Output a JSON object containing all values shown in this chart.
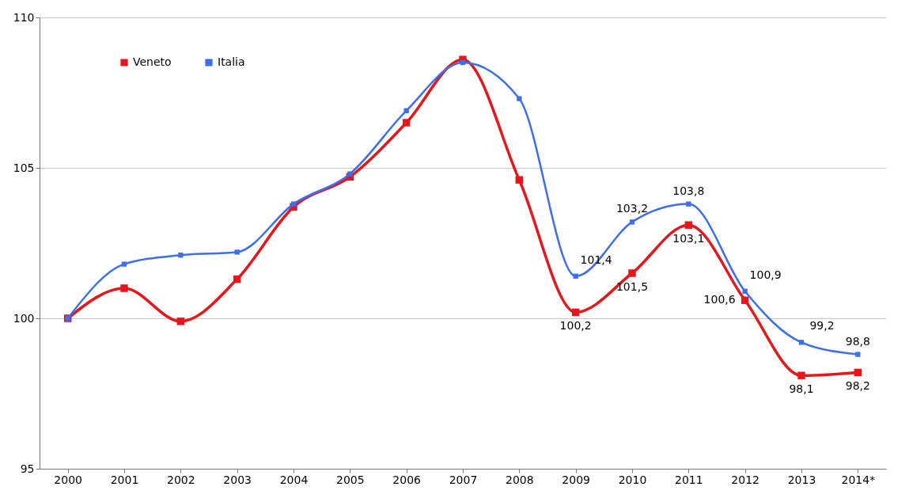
{
  "chart_data": {
    "type": "line",
    "categories": [
      "2000",
      "2001",
      "2002",
      "2003",
      "2004",
      "2005",
      "2006",
      "2007",
      "2008",
      "2009",
      "2010",
      "2011",
      "2012",
      "2013",
      "2014*"
    ],
    "series": [
      {
        "name": "Veneto",
        "color": "#e8161b",
        "values": [
          100,
          101.0,
          99.9,
          101.3,
          103.7,
          104.7,
          106.5,
          108.6,
          104.6,
          100.2,
          101.5,
          103.1,
          100.6,
          98.1,
          98.2
        ],
        "value_labels": [
          null,
          null,
          null,
          null,
          null,
          null,
          null,
          null,
          null,
          "100,2",
          "101,5",
          "103,1",
          "100,6",
          "98,1",
          "98,2"
        ]
      },
      {
        "name": "Italia",
        "color": "#3b6ef0",
        "values": [
          100,
          101.8,
          102.1,
          102.2,
          103.8,
          104.8,
          106.9,
          108.5,
          107.3,
          101.4,
          103.2,
          103.8,
          100.9,
          99.2,
          98.8
        ],
        "value_labels": [
          null,
          null,
          null,
          null,
          null,
          null,
          null,
          null,
          null,
          "101,4",
          "103,2",
          "103,8",
          "100,9",
          "99,2",
          "98,8"
        ]
      }
    ],
    "ylim": [
      95,
      110
    ],
    "yticks": [
      95,
      100,
      105,
      110
    ],
    "grid": "y",
    "legend": "top left",
    "marker": "square",
    "line_style": "solid"
  }
}
